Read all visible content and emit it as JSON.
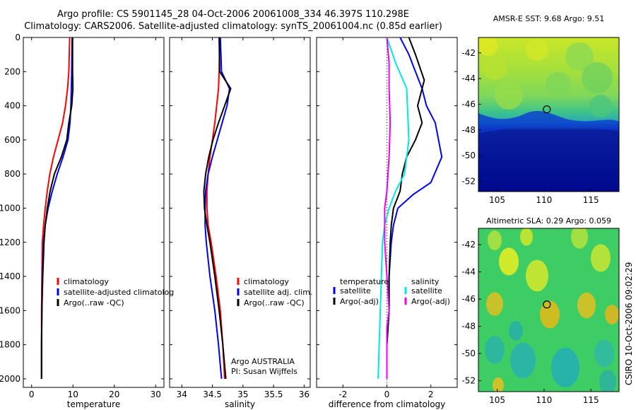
{
  "header": {
    "line1": "Argo profile: CS 5901145_28 04-Oct-2006 20061008_334 46.397S 110.298E",
    "line2": "Climatology: CARS2006. Satellite-adjusted climatology: synTS_20061004.nc (0.85d earlier)"
  },
  "side_label": "CSIRO 10-Oct-2006 09:02:29",
  "colors": {
    "red": "#ff0000",
    "blue": "#0000ee",
    "black": "#000000",
    "cyan": "#00e5e5",
    "magenta": "#ee00ee"
  },
  "chart_data": [
    {
      "type": "line",
      "xlabel": "temperature",
      "xlim": [
        -2,
        32
      ],
      "ylim": [
        2050,
        0
      ],
      "xticks": [
        "0",
        "10",
        "20",
        "30"
      ],
      "yticks": [
        "0",
        "200",
        "400",
        "600",
        "800",
        "1000",
        "1200",
        "1400",
        "1600",
        "1800",
        "2000"
      ],
      "legend": [
        "climatology",
        "satellite-adjusted climatolog",
        "Argo(..raw -QC)"
      ],
      "series": [
        {
          "name": "climatology",
          "color": "red",
          "x": [
            9.2,
            9.0,
            8.7,
            8.2,
            7.5,
            6.4,
            5.3,
            4.4,
            3.8,
            3.3,
            2.9,
            2.6,
            2.5,
            2.4,
            2.4,
            2.4
          ],
          "y": [
            0,
            200,
            300,
            400,
            500,
            600,
            700,
            800,
            900,
            1000,
            1100,
            1200,
            1400,
            1600,
            1800,
            2000
          ]
        },
        {
          "name": "satellite-adjusted climatology",
          "color": "blue",
          "x": [
            9.8,
            9.7,
            9.6,
            9.5,
            9.3,
            8.8,
            7.6,
            6.2,
            5.0,
            4.0,
            3.3,
            2.9,
            2.6,
            2.5,
            2.4,
            2.4
          ],
          "y": [
            0,
            200,
            300,
            400,
            500,
            600,
            700,
            800,
            900,
            1000,
            1100,
            1200,
            1400,
            1600,
            1800,
            2000
          ]
        },
        {
          "name": "Argo(..raw -QC)",
          "color": "black",
          "x": [
            9.9,
            9.9,
            10.0,
            9.7,
            9.0,
            8.5,
            7.2,
            5.5,
            4.5,
            3.8,
            3.3,
            3.0,
            2.7,
            2.5,
            2.4,
            2.4
          ],
          "y": [
            0,
            200,
            300,
            400,
            500,
            600,
            700,
            800,
            900,
            1000,
            1100,
            1200,
            1400,
            1600,
            1800,
            2000
          ]
        }
      ]
    },
    {
      "type": "line",
      "xlabel": "salinity",
      "xlim": [
        33.8,
        36.1
      ],
      "ylim": [
        2050,
        0
      ],
      "xticks": [
        "34",
        "34.5",
        "35",
        "35.5",
        "36"
      ],
      "legend": [
        "climatology",
        "satellite adj. clim.",
        "Argo(..raw -QC)"
      ],
      "annotation": [
        "Argo AUSTRALIA",
        "PI: Susan Wijffels"
      ],
      "series": [
        {
          "name": "climatology",
          "color": "red",
          "x": [
            34.62,
            34.61,
            34.6,
            34.57,
            34.54,
            34.5,
            34.46,
            34.43,
            34.41,
            34.41,
            34.43,
            34.48,
            34.56,
            34.63,
            34.67,
            34.7
          ],
          "y": [
            0,
            200,
            300,
            400,
            500,
            600,
            700,
            800,
            900,
            1000,
            1100,
            1200,
            1400,
            1600,
            1800,
            2000
          ]
        },
        {
          "name": "satellite adj. clim.",
          "color": "blue",
          "x": [
            34.63,
            34.65,
            34.78,
            34.74,
            34.66,
            34.58,
            34.5,
            34.43,
            34.39,
            34.38,
            34.38,
            34.4,
            34.46,
            34.54,
            34.6,
            34.65
          ],
          "y": [
            0,
            200,
            300,
            400,
            500,
            600,
            700,
            800,
            900,
            1000,
            1100,
            1200,
            1400,
            1600,
            1800,
            2000
          ]
        },
        {
          "name": "Argo(..raw -QC)",
          "color": "black",
          "x": [
            34.61,
            34.62,
            34.8,
            34.7,
            34.6,
            34.51,
            34.44,
            34.39,
            34.36,
            34.37,
            34.41,
            34.46,
            34.54,
            34.61,
            34.67,
            34.72
          ],
          "y": [
            0,
            200,
            300,
            400,
            500,
            600,
            700,
            800,
            900,
            1000,
            1100,
            1200,
            1400,
            1600,
            1800,
            2000
          ]
        }
      ]
    },
    {
      "type": "line",
      "xlabel": "difference from climatology",
      "xlim": [
        -3.2,
        3.2
      ],
      "ylim": [
        2050,
        0
      ],
      "xticks": [
        "-2",
        "0",
        "2"
      ],
      "legend_temperature_title": "temperature",
      "legend_salinity_title": "salinity",
      "legend": [
        "satellite",
        "Argo(-adj)",
        "satellite",
        "Argo(-adj)"
      ],
      "series": [
        {
          "name": "temperature satellite",
          "color": "blue",
          "x": [
            0.6,
            1.0,
            1.3,
            1.6,
            1.8,
            2.2,
            2.5,
            2.0,
            1.2,
            0.5,
            0.3,
            0.2,
            0.1,
            0.1,
            0.0,
            0.0
          ],
          "y": [
            0,
            100,
            200,
            300,
            400,
            500,
            700,
            850,
            920,
            1000,
            1100,
            1200,
            1400,
            1600,
            1800,
            2000
          ]
        },
        {
          "name": "temperature Argo(-adj)",
          "color": "black",
          "x": [
            1.0,
            1.3,
            1.7,
            1.4,
            1.6,
            1.3,
            0.9,
            0.7,
            0.6,
            0.3,
            0.2,
            0.15,
            0.1,
            0.1,
            0.0,
            0.0
          ],
          "y": [
            0,
            100,
            250,
            400,
            500,
            600,
            700,
            800,
            900,
            1000,
            1100,
            1200,
            1400,
            1600,
            1800,
            2000
          ]
        },
        {
          "name": "salinity satellite",
          "color": "cyan",
          "x": [
            0.0,
            0.4,
            0.9,
            1.0,
            0.8,
            0.4,
            0.1,
            -0.1,
            -0.2,
            -0.25,
            -0.3,
            -0.35,
            -0.4
          ],
          "y": [
            0,
            150,
            300,
            600,
            800,
            900,
            1000,
            1100,
            1200,
            1400,
            1600,
            1800,
            2000
          ]
        },
        {
          "name": "salinity Argo(-adj)",
          "color": "magenta",
          "x": [
            0.0,
            0.1,
            0.1,
            0.15,
            0.1,
            0.0,
            -0.1,
            -0.1,
            0.0,
            0.1,
            0.0,
            0.0,
            0.0
          ],
          "y": [
            0,
            150,
            300,
            500,
            700,
            900,
            1000,
            1200,
            1400,
            1600,
            1700,
            1850,
            2000
          ]
        }
      ]
    },
    {
      "type": "heatmap",
      "title": "AMSR-E SST: 9.68 Argo: 9.51",
      "xlim": [
        103,
        118
      ],
      "ylim": [
        -52.8,
        -40.8
      ],
      "xticks": [
        "105",
        "110",
        "115"
      ],
      "yticks": [
        "-42",
        "-44",
        "-46",
        "-48",
        "-50",
        "-52"
      ],
      "marker": {
        "lon": 110.298,
        "lat": -46.397
      }
    },
    {
      "type": "heatmap",
      "title": "Altimetric SLA: 0.29 Argo: 0.059",
      "xlim": [
        103,
        118
      ],
      "ylim": [
        -52.8,
        -40.8
      ],
      "xticks": [
        "105",
        "110",
        "115"
      ],
      "yticks": [
        "-42",
        "-44",
        "-46",
        "-48",
        "-50",
        "-52"
      ],
      "marker": {
        "lon": 110.298,
        "lat": -46.397
      }
    }
  ]
}
